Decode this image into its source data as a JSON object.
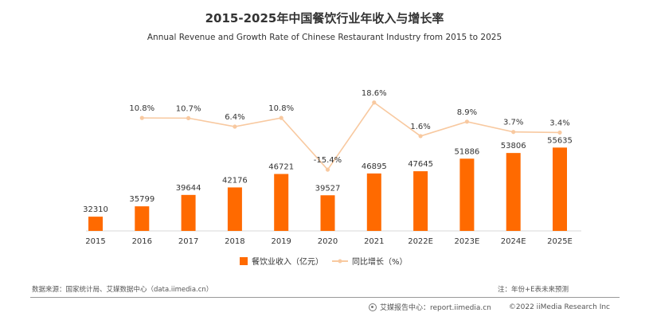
{
  "header": {
    "title": "2015-2025年中国餐饮行业年收入与增长率",
    "subtitle": "Annual Revenue and Growth Rate of Chinese Restaurant Industry from 2015 to 2025"
  },
  "chart_data": {
    "type": "bar",
    "categories": [
      "2015",
      "2016",
      "2017",
      "2018",
      "2019",
      "2020",
      "2021",
      "2022E",
      "2023E",
      "2024E",
      "2025E"
    ],
    "series": [
      {
        "name": "餐饮业收入（亿元）",
        "type": "bar",
        "values": [
          32310,
          35799,
          39644,
          42176,
          46721,
          39527,
          46895,
          47645,
          51886,
          53806,
          55635
        ],
        "labels": [
          "32310",
          "35799",
          "39644",
          "42176",
          "46721",
          "39527",
          "46895",
          "47645",
          "51886",
          "53806",
          "55635"
        ],
        "color": "#FF6A00"
      },
      {
        "name": "同比增长（%）",
        "type": "line",
        "values": [
          null,
          10.8,
          10.7,
          6.4,
          10.8,
          -15.4,
          18.6,
          1.6,
          8.9,
          3.7,
          3.4
        ],
        "labels": [
          "",
          "10.8%",
          "10.7%",
          "6.4%",
          "10.8%",
          "-15.4%",
          "18.6%",
          "1.6%",
          "8.9%",
          "3.7%",
          "3.4%"
        ],
        "color": "#F8C9A0"
      }
    ],
    "legend_position": "bottom",
    "grid": false
  },
  "footer": {
    "source": "数据来源：国家统计局、艾媒数据中心（data.iimedia.cn）",
    "note": "注：年份+E表未来预测",
    "report_center": "艾媒报告中心：report.iimedia.cn",
    "copyright": "©2022  iiMedia Research  Inc"
  }
}
